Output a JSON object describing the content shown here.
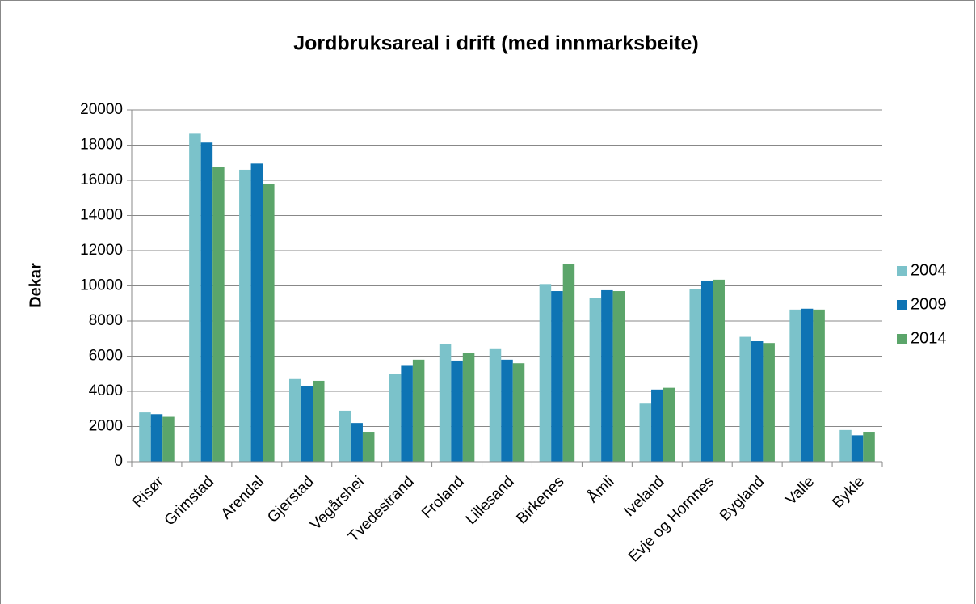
{
  "chart_data": {
    "type": "bar",
    "title": "Jordbruksareal i drift (med innmarksbeite)",
    "ylabel": "Dekar",
    "categories": [
      "Risør",
      "Grimstad",
      "Arendal",
      "Gjerstad",
      "Vegårshei",
      "Tvedestrand",
      "Froland",
      "Lillesand",
      "Birkenes",
      "Åmli",
      "Iveland",
      "Evje og Hornnes",
      "Bygland",
      "Valle",
      "Bykle"
    ],
    "series": [
      {
        "name": "2004",
        "color": "#7bc2ca",
        "values": [
          2800,
          18650,
          16600,
          4700,
          2900,
          5000,
          6700,
          6400,
          10100,
          9300,
          3300,
          9800,
          7100,
          8650,
          1800
        ]
      },
      {
        "name": "2009",
        "color": "#0e74b4",
        "values": [
          2700,
          18150,
          16950,
          4300,
          2200,
          5450,
          5750,
          5800,
          9700,
          9750,
          4100,
          10300,
          6850,
          8700,
          1500
        ]
      },
      {
        "name": "2014",
        "color": "#5ba56a",
        "values": [
          2550,
          16750,
          15800,
          4600,
          1700,
          5800,
          6200,
          5600,
          11250,
          9700,
          4200,
          10350,
          6750,
          8650,
          1700
        ]
      }
    ],
    "ylim": [
      0,
      20000
    ],
    "yticks": [
      0,
      2000,
      4000,
      6000,
      8000,
      10000,
      12000,
      14000,
      16000,
      18000,
      20000
    ],
    "grid": true,
    "legend": "right"
  }
}
